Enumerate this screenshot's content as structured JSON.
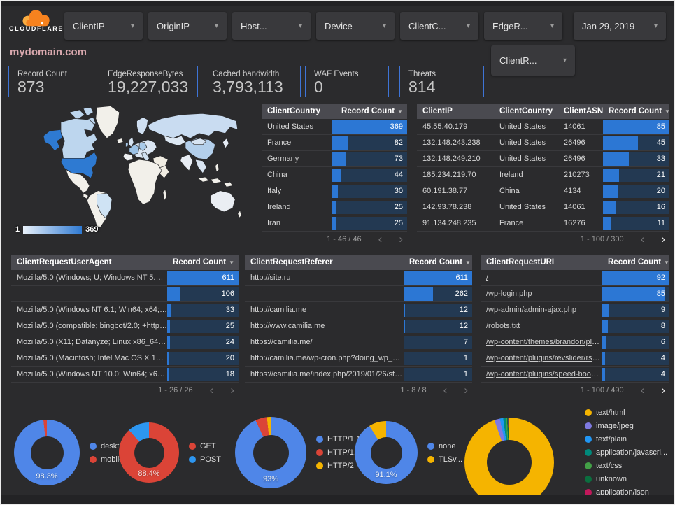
{
  "brand": {
    "logo_text": "CLOUDFLARE"
  },
  "filterbar": {
    "caret": "▾",
    "chips": [
      "ClientIP",
      "OriginIP",
      "Host...",
      "Device",
      "ClientC...",
      "EdgeR..."
    ],
    "date_chip": "Jan 29, 2019",
    "second_row_chip": "ClientR..."
  },
  "title": "mydomain.com",
  "scorecards": [
    {
      "label": "Record Count",
      "value": "873"
    },
    {
      "label": "EdgeResponseBytes",
      "value": "19,227,033"
    },
    {
      "label": "Cached bandwidth",
      "value": "3,793,113"
    },
    {
      "label": "WAF Events",
      "value": "0"
    },
    {
      "label": "Threats",
      "value": "814"
    }
  ],
  "map": {
    "legend_min": "1",
    "legend_max": "369",
    "country_colors": {
      "default": "#f2f0ea",
      "usa": "#2e7ad2",
      "canada": "#bdd6ee",
      "arctic": "#bdd6ee",
      "greenland": "#f2f0ea",
      "mexico": "#f2f0ea",
      "southamerica": "#f2f0ea",
      "brazil": "#cfe3f4",
      "russia": "#c9dcf1",
      "china": "#b3cfeb",
      "mongolia": "#d7e4f2",
      "kazakhstan": "#dde8f4",
      "scandinavia": "#cfdff1",
      "europe": "#dbe6f3",
      "france": "#9cc2e6",
      "germany": "#a9cae9",
      "italy": "#cfe0f1",
      "spain": "#eef0f2",
      "uk": "#d5e3f2",
      "ireland": "#a9c9e9",
      "africa": "#f2f0ea",
      "madagascar": "#f2f0ea",
      "mideast": "#f0ece2",
      "arabia": "#f0ece2",
      "india": "#e8edf4",
      "seasia": "#d9e5f2",
      "indonesia": "#f2f0ea",
      "philippines": "#f2f0ea",
      "japan": "#e4ebf4",
      "australia": "#eaeef3",
      "nz": "#f2f0ea",
      "iceland": "#f2f0ea"
    }
  },
  "tables": [
    {
      "id": "country",
      "columns": [
        {
          "label": "ClientCountry",
          "sort": false
        },
        {
          "label": "Record Count",
          "sort": true
        }
      ],
      "rows": [
        [
          "United States",
          369
        ],
        [
          "France",
          82
        ],
        [
          "Germany",
          73
        ],
        [
          "China",
          44
        ],
        [
          "Italy",
          30
        ],
        [
          "Ireland",
          25
        ],
        [
          "Iran",
          25
        ]
      ],
      "bar_max": 369,
      "pagination": {
        "label": "1 - 46 / 46",
        "prev_enabled": false,
        "next_enabled": false
      }
    },
    {
      "id": "clientip",
      "columns": [
        {
          "label": "ClientIP",
          "sort": false
        },
        {
          "label": "ClientCountry",
          "sort": false
        },
        {
          "label": "ClientASN",
          "sort": false
        },
        {
          "label": "Record Count",
          "sort": true
        }
      ],
      "rows": [
        [
          "45.55.40.179",
          "United States",
          "14061",
          85
        ],
        [
          "132.148.243.238",
          "United States",
          "26496",
          45
        ],
        [
          "132.148.249.210",
          "United States",
          "26496",
          33
        ],
        [
          "185.234.219.70",
          "Ireland",
          "210273",
          21
        ],
        [
          "60.191.38.77",
          "China",
          "4134",
          20
        ],
        [
          "142.93.78.238",
          "United States",
          "14061",
          16
        ],
        [
          "91.134.248.235",
          "France",
          "16276",
          11
        ]
      ],
      "bar_max": 85,
      "pagination": {
        "label": "1 - 100 / 300",
        "prev_enabled": false,
        "next_enabled": true
      }
    },
    {
      "id": "useragent",
      "columns": [
        {
          "label": "ClientRequestUserAgent",
          "sort": false
        },
        {
          "label": "Record Count",
          "sort": true
        }
      ],
      "rows": [
        [
          "Mozilla/5.0 (Windows; U; Windows NT 5.1; en-U...",
          611
        ],
        [
          "",
          106
        ],
        [
          "Mozilla/5.0 (Windows NT 6.1; Win64; x64; rv:64...",
          33
        ],
        [
          "Mozilla/5.0 (compatible; bingbot/2.0; +http://w...",
          25
        ],
        [
          "Mozilla/5.0 (X11; Datanyze; Linux x86_64) Appl...",
          24
        ],
        [
          "Mozilla/5.0 (Macintosh; Intel Mac OS X 10.11; r...",
          20
        ],
        [
          "Mozilla/5.0 (Windows NT 10.0; Win64; x64) App...",
          18
        ]
      ],
      "bar_max": 611,
      "pagination": {
        "label": "1 - 26 / 26",
        "prev_enabled": false,
        "next_enabled": false
      }
    },
    {
      "id": "referer",
      "columns": [
        {
          "label": "ClientRequestReferer",
          "sort": false
        },
        {
          "label": "Record Count",
          "sort": true
        }
      ],
      "rows": [
        [
          "http://site.ru",
          611
        ],
        [
          "",
          262
        ],
        [
          "http://camilia.me",
          12
        ],
        [
          "http://www.camilia.me",
          12
        ],
        [
          "https://camilia.me/",
          7
        ],
        [
          "http://camilia.me/wp-cron.php?doing_wp_cron...",
          1
        ],
        [
          "https://camilia.me/index.php/2019/01/26/stor...",
          1
        ]
      ],
      "bar_max": 611,
      "pagination": {
        "label": "1 - 8 / 8",
        "prev_enabled": false,
        "next_enabled": false
      }
    },
    {
      "id": "uri",
      "links": true,
      "columns": [
        {
          "label": "ClientRequestURI",
          "sort": false
        },
        {
          "label": "Record Count",
          "sort": true
        }
      ],
      "rows": [
        [
          "/",
          92
        ],
        [
          "/wp-login.php",
          85
        ],
        [
          "/wp-admin/admin-ajax.php",
          9
        ],
        [
          "/robots.txt",
          8
        ],
        [
          "/wp-content/themes/brandon/plu...",
          6
        ],
        [
          "/wp-content/plugins/revslider/rs-p...",
          4
        ],
        [
          "/wp-content/plugins/speed-booste...",
          4
        ]
      ],
      "bar_max": 92,
      "pagination": {
        "label": "1 - 100 / 490",
        "prev_enabled": false,
        "next_enabled": true
      }
    }
  ],
  "donuts": [
    {
      "id": "device-type",
      "size": 94,
      "percent_label": "98.3%",
      "label_color": "#edf1f6",
      "sort_arrows": false,
      "slices": [
        {
          "label": "deskt...",
          "value": 98.3,
          "color": "#4f86e8"
        },
        {
          "label": "mobile",
          "value": 1.7,
          "color": "#db4437"
        }
      ]
    },
    {
      "id": "request-method",
      "size": 86,
      "percent_label": "88.4%",
      "label_color": "#f3e3e1",
      "sort_arrows": false,
      "slices": [
        {
          "label": "GET",
          "value": 88.4,
          "color": "#db4437"
        },
        {
          "label": "POST",
          "value": 11.6,
          "color": "#2d96f0"
        }
      ]
    },
    {
      "id": "http-protocol",
      "size": 102,
      "percent_label": "93%",
      "label_color": "#dfe5ec",
      "sort_arrows": false,
      "slices": [
        {
          "label": "HTTP/1.1",
          "value": 93,
          "color": "#4f86e8"
        },
        {
          "label": "HTTP/1.0",
          "value": 5.3,
          "color": "#db4437"
        },
        {
          "label": "HTTP/2",
          "value": 1.7,
          "color": "#f5b400"
        }
      ]
    },
    {
      "id": "tls-version",
      "size": 90,
      "percent_label": "91.1%",
      "label_color": "#edf1f6",
      "sort_arrows": false,
      "slices": [
        {
          "label": "none",
          "value": 91.1,
          "color": "#4f86e8"
        },
        {
          "label": "TLSv...",
          "value": 8.9,
          "color": "#f5b400"
        }
      ]
    },
    {
      "id": "content-type",
      "size": 128,
      "percent_label": "94.6%",
      "label_color": "#8f8a7b",
      "sort_arrows": true,
      "slices": [
        {
          "label": "text/html",
          "value": 94.6,
          "color": "#f5b400"
        },
        {
          "label": "image/jpeg",
          "value": 2.0,
          "color": "#7e79e0"
        },
        {
          "label": "text/plain",
          "value": 1.2,
          "color": "#2196f3"
        },
        {
          "label": "application/javascri...",
          "value": 0.9,
          "color": "#00897b"
        },
        {
          "label": "text/css",
          "value": 0.5,
          "color": "#43a047"
        },
        {
          "label": "unknown",
          "value": 0.4,
          "color": "#0b6e3f"
        },
        {
          "label": "application/json",
          "value": 0.4,
          "color": "#c2185b"
        }
      ]
    },
    {
      "id": "legend-sort",
      "arrows_glyphs": "▲▼"
    }
  ]
}
